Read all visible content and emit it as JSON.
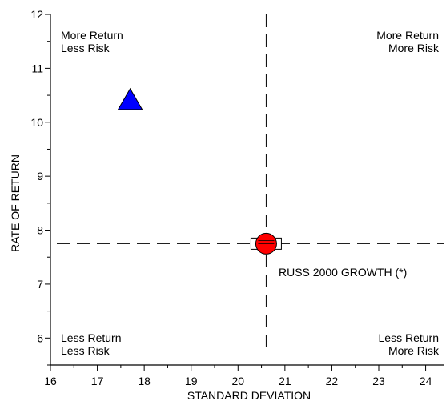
{
  "chart_data": {
    "type": "scatter",
    "title": "",
    "xlabel": "STANDARD DEVIATION",
    "ylabel": "RATE OF RETURN",
    "xlim": [
      16,
      24.4
    ],
    "ylim": [
      5.5,
      12
    ],
    "x_ticks": [
      "16",
      "17",
      "18",
      "19",
      "20",
      "21",
      "22",
      "23",
      "24"
    ],
    "y_ticks": [
      "6",
      "7",
      "8",
      "9",
      "10",
      "11",
      "12"
    ],
    "grid": false,
    "quadrant_lines": {
      "x": 20.6,
      "y": 7.75,
      "style": "dashed"
    },
    "quadrant_labels": {
      "top_left": [
        "More Return",
        "Less Risk"
      ],
      "top_right": [
        "More Return",
        "More Risk"
      ],
      "bottom_left": [
        "Less Return",
        "Less Risk"
      ],
      "bottom_right": [
        "Less Return",
        "More Risk"
      ]
    },
    "points": [
      {
        "x": 17.7,
        "y": 10.4,
        "marker": "triangle",
        "color": "#0000ff"
      },
      {
        "x": 20.6,
        "y": 7.75,
        "marker": "circle-with-box",
        "color": "#ff0000",
        "label": "RUSS 2000 GROWTH (*)"
      }
    ]
  }
}
